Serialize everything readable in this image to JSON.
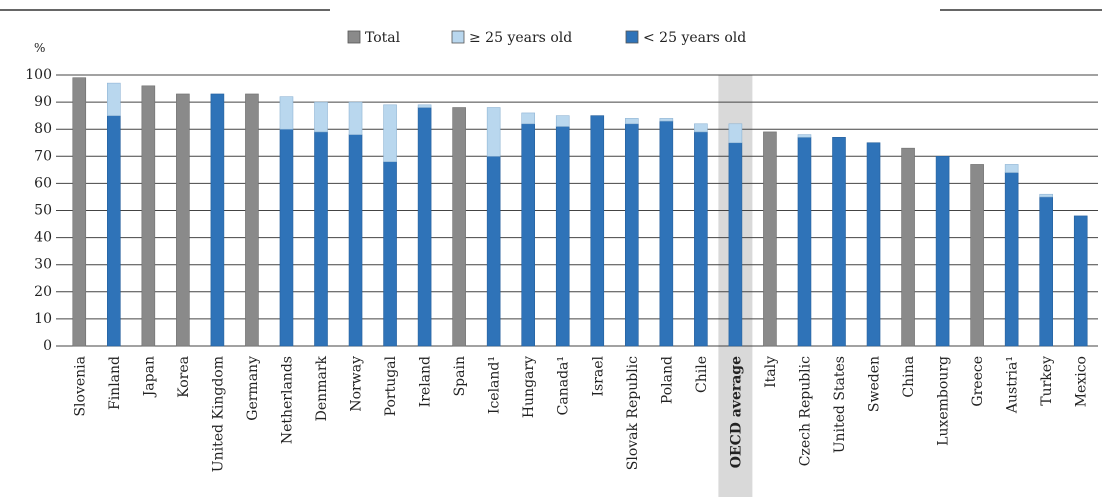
{
  "colors": {
    "total": "#8a8a8a",
    "over25": "#b9d7ee",
    "under25": "#2f73b8",
    "highlight": "#d9d9d9",
    "grid": "#444444"
  },
  "chart_data": {
    "type": "bar",
    "stacked": true,
    "unit_label": "%",
    "ylim": [
      0,
      100
    ],
    "yticks": [
      0,
      10,
      20,
      30,
      40,
      50,
      60,
      70,
      80,
      90,
      100
    ],
    "grid": true,
    "legend_position": "top-center",
    "legend": [
      {
        "key": "total",
        "label": "Total",
        "color_key": "total"
      },
      {
        "key": "over25",
        "label": "≥ 25 years old",
        "color_key": "over25"
      },
      {
        "key": "under25",
        "label": "< 25 years old",
        "color_key": "under25"
      }
    ],
    "highlight_category": "OECD average",
    "categories": [
      "Slovenia",
      "Finland",
      "Japan",
      "Korea",
      "United Kingdom",
      "Germany",
      "Netherlands",
      "Denmark",
      "Norway",
      "Portugal",
      "Ireland",
      "Spain",
      "Iceland¹",
      "Hungary",
      "Canada¹",
      "Israel",
      "Slovak Republic",
      "Poland",
      "Chile",
      "OECD average",
      "Italy",
      "Czech Republic",
      "United States",
      "Sweden",
      "China",
      "Luxembourg",
      "Greece",
      "Austria¹",
      "Turkey",
      "Mexico"
    ],
    "series": [
      {
        "key": "total",
        "name": "Total",
        "values": [
          99,
          null,
          96,
          93,
          null,
          93,
          null,
          null,
          null,
          null,
          null,
          88,
          null,
          null,
          null,
          null,
          null,
          null,
          null,
          null,
          79,
          null,
          null,
          null,
          73,
          null,
          67,
          null,
          null,
          null
        ]
      },
      {
        "key": "under25",
        "name": "< 25 years old",
        "values": [
          null,
          85,
          null,
          null,
          93,
          null,
          80,
          79,
          78,
          68,
          88,
          null,
          70,
          82,
          81,
          85,
          82,
          83,
          79,
          75,
          null,
          77,
          77,
          75,
          null,
          70,
          null,
          64,
          55,
          48
        ]
      },
      {
        "key": "over25",
        "name": "≥ 25 years old",
        "values": [
          null,
          12,
          null,
          null,
          null,
          null,
          12,
          11,
          12,
          21,
          1,
          null,
          18,
          4,
          4,
          0,
          2,
          1,
          3,
          7,
          null,
          1,
          0,
          0,
          null,
          0,
          null,
          3,
          1,
          0
        ]
      }
    ]
  }
}
